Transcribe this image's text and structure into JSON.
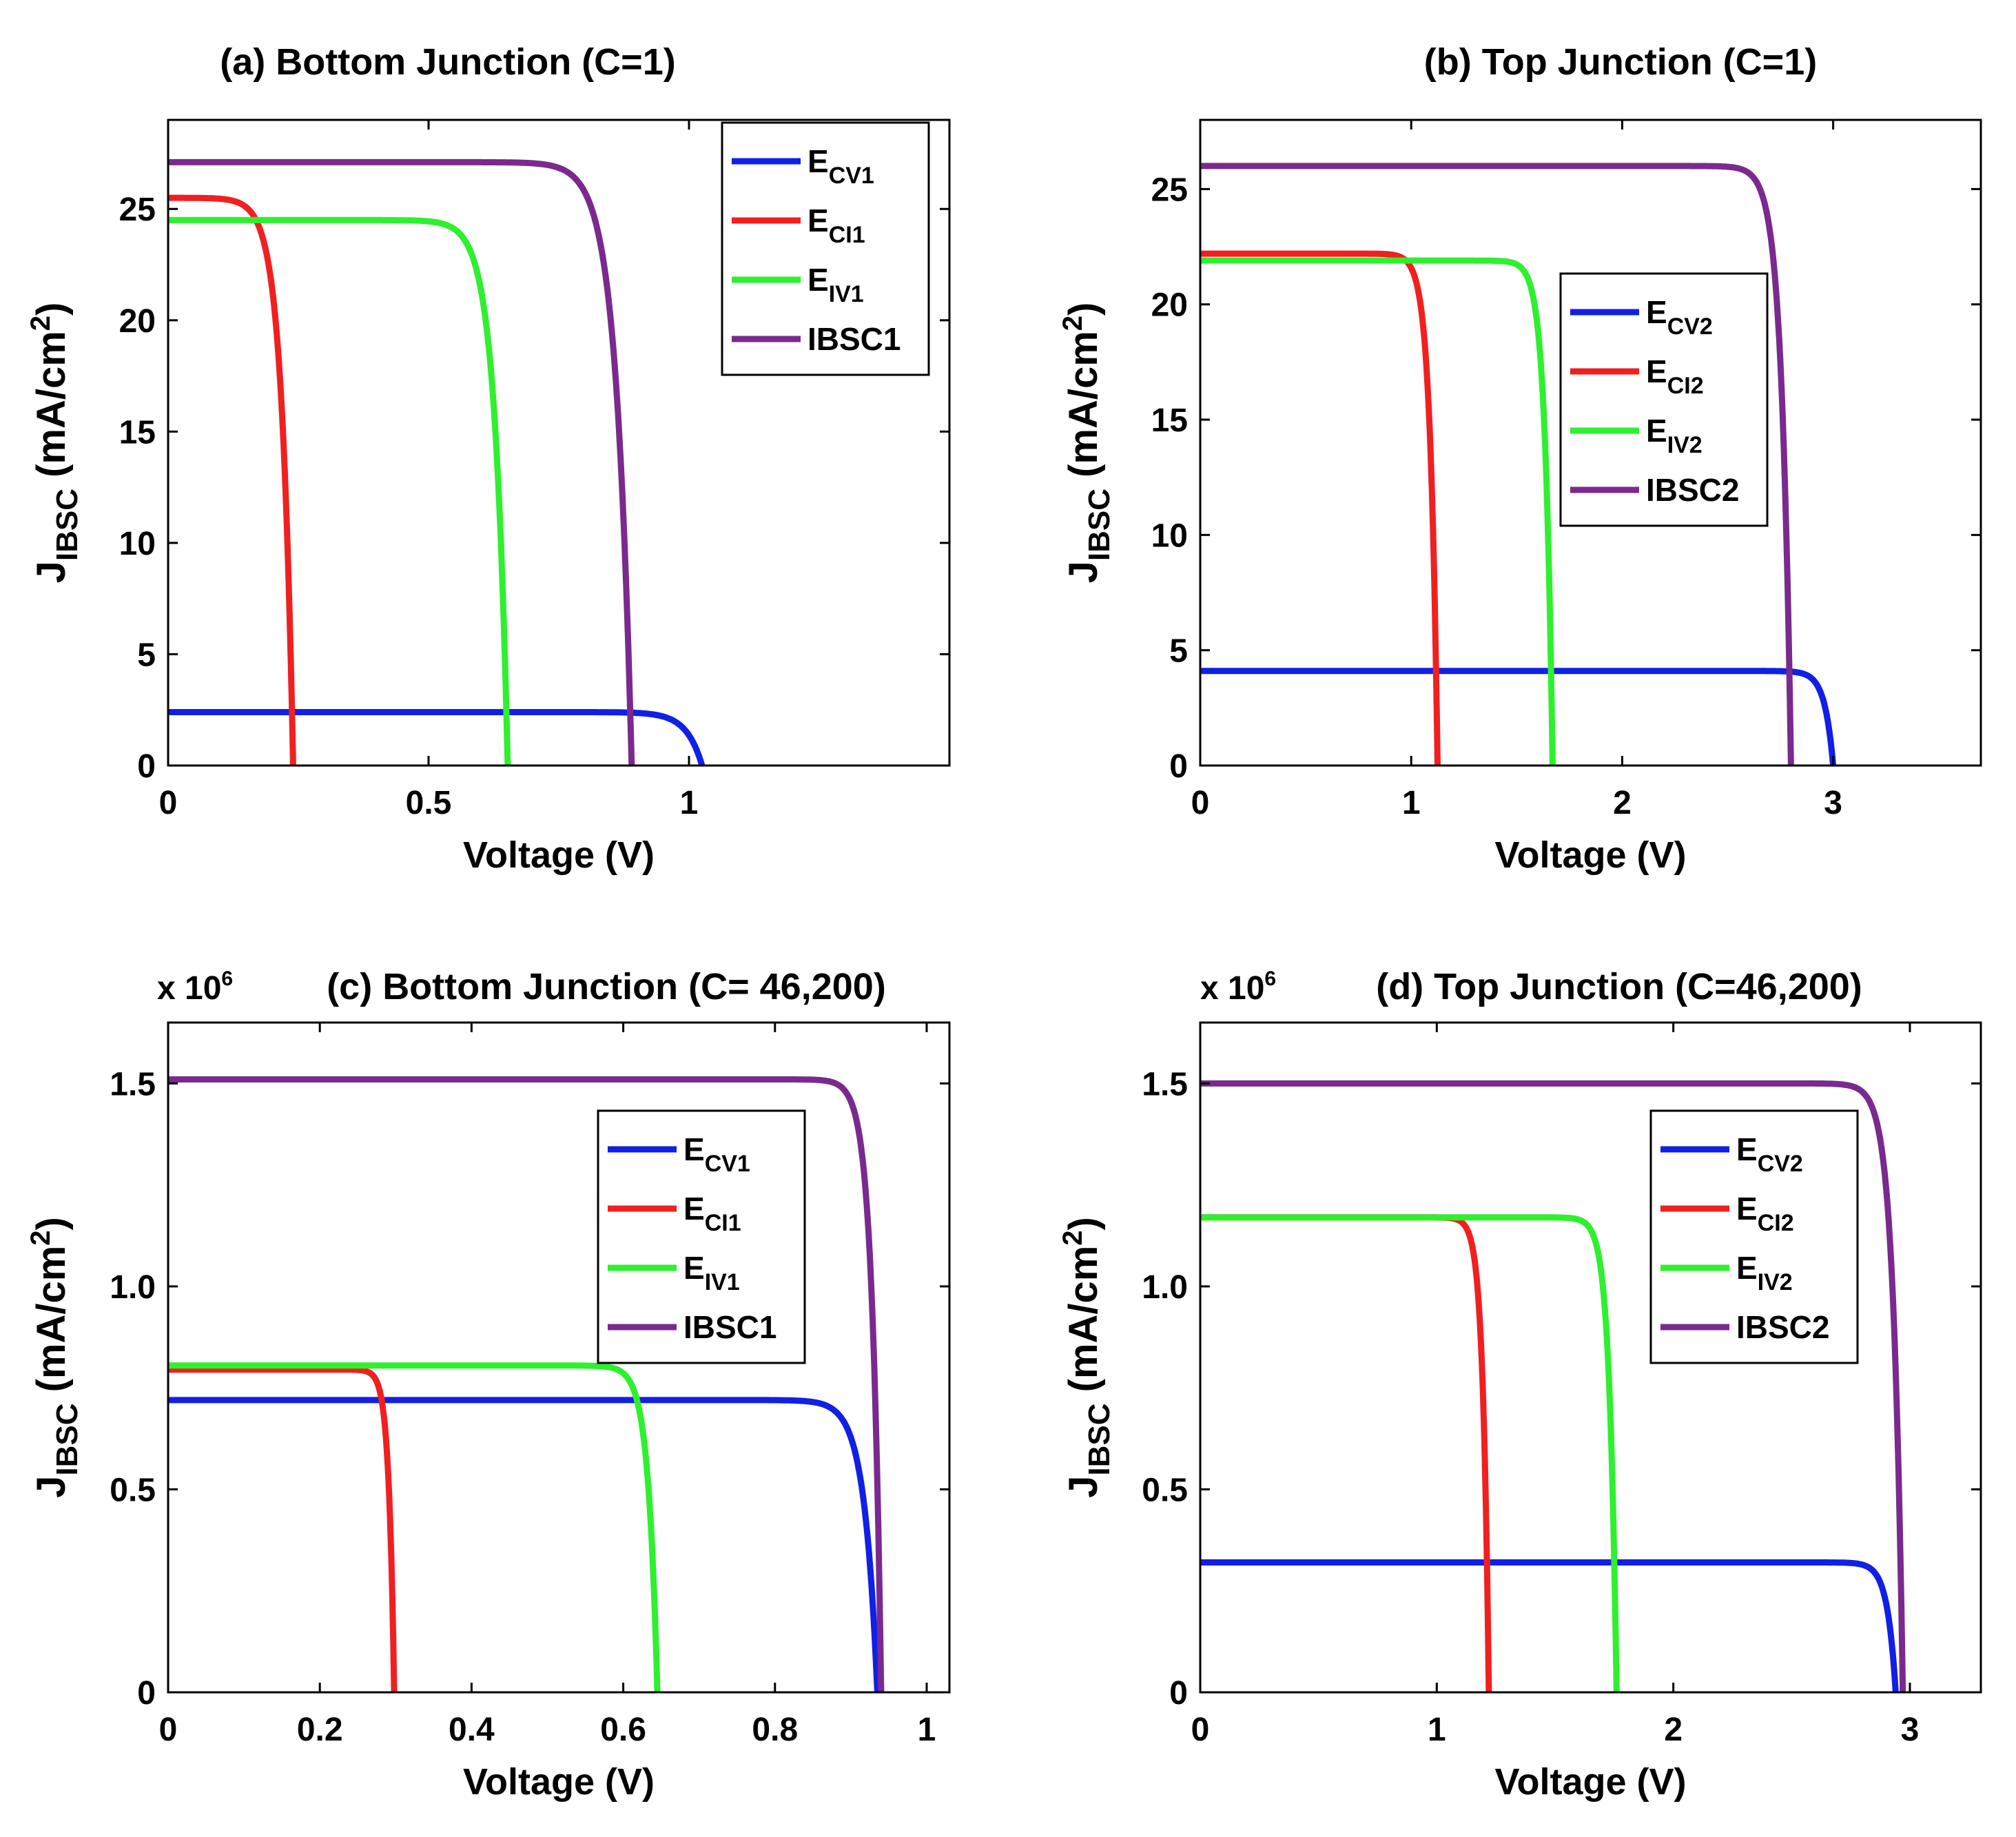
{
  "figure": {
    "colors": {
      "E_CV": "#1020e6",
      "E_CI": "#f02020",
      "E_IV": "#2ef02e",
      "IBSC": "#7a2a8e"
    }
  },
  "chart_data": [
    {
      "id": "a",
      "type": "line",
      "title": "(a) Bottom Junction (C=1)",
      "scale_label": "",
      "xlabel": "Voltage (V)",
      "ylabel_main": "J",
      "ylabel_sub": "IBSC",
      "ylabel_units": "(mA/cm",
      "ylabel_sup": "2",
      "ylabel_close": ")",
      "xlim": [
        0,
        1.5
      ],
      "ylim": [
        0,
        29
      ],
      "x_ticks": [
        0,
        0.5,
        1
      ],
      "x_tick_labels": [
        "0",
        "0.5",
        "1"
      ],
      "y_ticks": [
        0,
        5,
        10,
        15,
        20,
        25
      ],
      "y_tick_labels": [
        "0",
        "5",
        "10",
        "15",
        "20",
        "25"
      ],
      "legend_position": "top-right",
      "series": [
        {
          "key": "E_CV",
          "label_main": "E",
          "label_sub": "CV1",
          "jsc": 2.4,
          "voc": 1.025,
          "knee": 0.03
        },
        {
          "key": "E_CI",
          "label_main": "E",
          "label_sub": "CI1",
          "jsc": 25.5,
          "voc": 0.24,
          "knee": 0.022
        },
        {
          "key": "E_IV",
          "label_main": "E",
          "label_sub": "IV1",
          "jsc": 24.5,
          "voc": 0.652,
          "knee": 0.025
        },
        {
          "key": "IBSC",
          "label_main": "IBSC1",
          "label_sub": "",
          "jsc": 27.1,
          "voc": 0.89,
          "knee": 0.03
        }
      ]
    },
    {
      "id": "b",
      "type": "line",
      "title": "(b) Top Junction (C=1)",
      "scale_label": "",
      "xlabel": "Voltage (V)",
      "ylabel_main": "J",
      "ylabel_sub": "IBSC",
      "ylabel_units": "(mA/cm",
      "ylabel_sup": "2",
      "ylabel_close": ")",
      "xlim": [
        0,
        3.7
      ],
      "ylim": [
        0,
        28
      ],
      "x_ticks": [
        0,
        1,
        2,
        3
      ],
      "x_tick_labels": [
        "0",
        "1",
        "2",
        "3"
      ],
      "y_ticks": [
        0,
        5,
        10,
        15,
        20,
        25
      ],
      "y_tick_labels": [
        "0",
        "5",
        "10",
        "15",
        "20",
        "25"
      ],
      "legend_position": "center-right",
      "series": [
        {
          "key": "E_CV",
          "label_main": "E",
          "label_sub": "CV2",
          "jsc": 4.1,
          "voc": 3.0,
          "knee": 0.04
        },
        {
          "key": "E_CI",
          "label_main": "E",
          "label_sub": "CI2",
          "jsc": 22.2,
          "voc": 1.125,
          "knee": 0.035
        },
        {
          "key": "E_IV",
          "label_main": "E",
          "label_sub": "IV2",
          "jsc": 21.9,
          "voc": 1.67,
          "knee": 0.035
        },
        {
          "key": "IBSC",
          "label_main": "IBSC2",
          "label_sub": "",
          "jsc": 26.0,
          "voc": 2.8,
          "knee": 0.045
        }
      ]
    },
    {
      "id": "c",
      "type": "line",
      "title": "(c) Bottom Junction (C= 46,200)",
      "scale_label": "x 10",
      "scale_exp": "6",
      "xlabel": "Voltage (V)",
      "ylabel_main": "J",
      "ylabel_sub": "IBSC",
      "ylabel_units": "(mA/cm",
      "ylabel_sup": "2",
      "ylabel_close": ")",
      "xlim": [
        0,
        1.03
      ],
      "ylim": [
        0,
        1.65
      ],
      "x_ticks": [
        0,
        0.2,
        0.4,
        0.6,
        0.8,
        1
      ],
      "x_tick_labels": [
        "0",
        "0.2",
        "0.4",
        "0.6",
        "0.8",
        "1"
      ],
      "y_ticks": [
        0,
        0.5,
        1.0,
        1.5
      ],
      "y_tick_labels": [
        "0",
        "0.5",
        "1.0",
        "1.5"
      ],
      "legend_position": "center-right",
      "series": [
        {
          "key": "E_CV",
          "label_main": "E",
          "label_sub": "CV1",
          "jsc": 0.72,
          "voc": 0.935,
          "knee": 0.017
        },
        {
          "key": "E_CI",
          "label_main": "E",
          "label_sub": "CI1",
          "jsc": 0.795,
          "voc": 0.298,
          "knee": 0.007
        },
        {
          "key": "E_IV",
          "label_main": "E",
          "label_sub": "IV1",
          "jsc": 0.805,
          "voc": 0.645,
          "knee": 0.012
        },
        {
          "key": "IBSC",
          "label_main": "IBSC1",
          "label_sub": "",
          "jsc": 1.51,
          "voc": 0.94,
          "knee": 0.012
        }
      ]
    },
    {
      "id": "d",
      "type": "line",
      "title": "(d) Top Junction (C=46,200)",
      "scale_label": "x 10",
      "scale_exp": "6",
      "xlabel": "Voltage (V)",
      "ylabel_main": "J",
      "ylabel_sub": "IBSC",
      "ylabel_units": "(mA/cm",
      "ylabel_sup": "2",
      "ylabel_close": ")",
      "xlim": [
        0,
        3.3
      ],
      "ylim": [
        0,
        1.65
      ],
      "x_ticks": [
        0,
        1,
        2,
        3
      ],
      "x_tick_labels": [
        "0",
        "1",
        "2",
        "3"
      ],
      "y_ticks": [
        0,
        0.5,
        1.0,
        1.5
      ],
      "y_tick_labels": [
        "0",
        "0.5",
        "1.0",
        "1.5"
      ],
      "legend_position": "center-right",
      "series": [
        {
          "key": "E_CV",
          "label_main": "E",
          "label_sub": "CV2",
          "jsc": 0.32,
          "voc": 2.94,
          "knee": 0.035
        },
        {
          "key": "E_CI",
          "label_main": "E",
          "label_sub": "CI2",
          "jsc": 1.17,
          "voc": 1.22,
          "knee": 0.025
        },
        {
          "key": "E_IV",
          "label_main": "E",
          "label_sub": "IV2",
          "jsc": 1.17,
          "voc": 1.76,
          "knee": 0.03
        },
        {
          "key": "IBSC",
          "label_main": "IBSC2",
          "label_sub": "",
          "jsc": 1.5,
          "voc": 2.97,
          "knee": 0.04
        }
      ]
    }
  ]
}
